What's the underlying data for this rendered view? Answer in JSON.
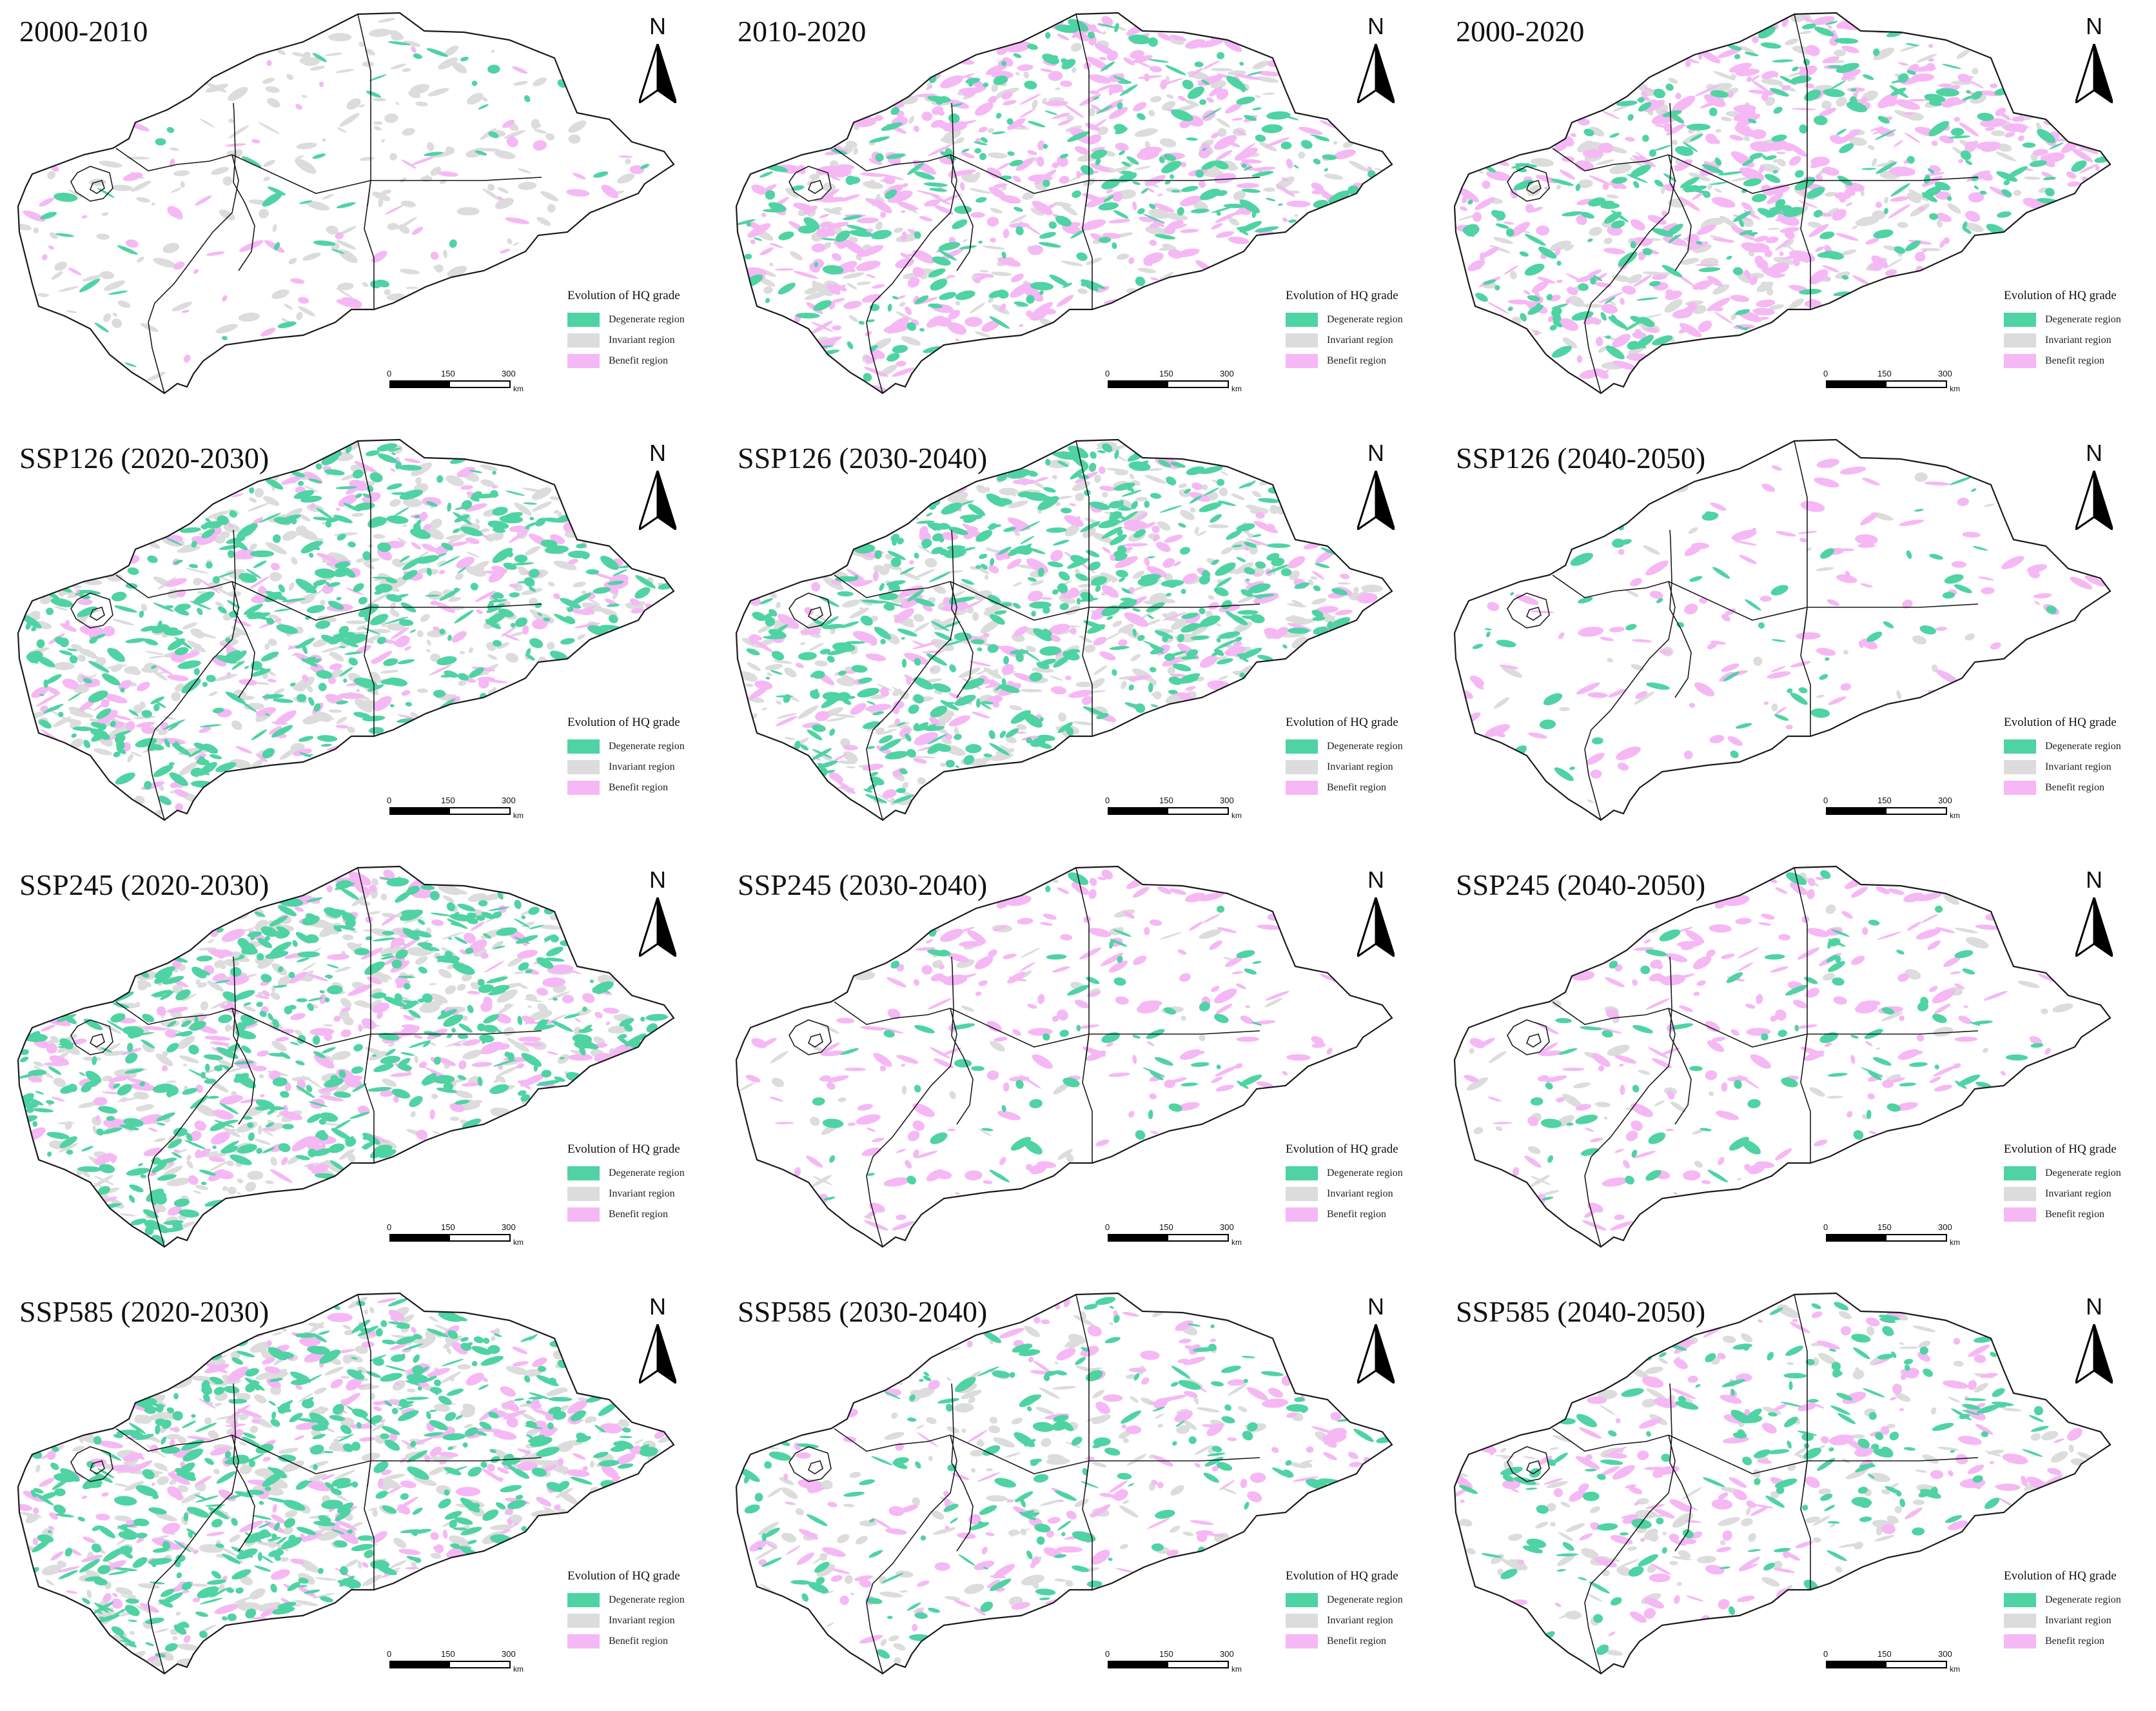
{
  "figure": {
    "colors": {
      "degenerate": "#4fd3a3",
      "invariant": "#dcdcdc",
      "benefit": "#f5b8f5",
      "boundary": "#1a1a1a"
    },
    "legend": {
      "title": "Evolution of HQ grade",
      "items": [
        {
          "label": "Degenerate region",
          "color": "#4fd3a3"
        },
        {
          "label": "Invariant region",
          "color": "#dcdcdc"
        },
        {
          "label": "Benefit region",
          "color": "#f5b8f5"
        }
      ]
    },
    "north_label": "N",
    "north_icon": "north-arrow-icon",
    "scale": {
      "ticks": [
        "0",
        "150",
        "300"
      ],
      "unit": "km"
    },
    "panels": [
      {
        "title": "2000-2010",
        "degenerate_level": 0.08,
        "benefit_level": 0.1,
        "invariant_level": 0.35
      },
      {
        "title": "2010-2020",
        "degenerate_level": 0.45,
        "benefit_level": 0.75,
        "invariant_level": 0.4
      },
      {
        "title": "2000-2020",
        "degenerate_level": 0.45,
        "benefit_level": 0.75,
        "invariant_level": 0.4
      },
      {
        "title": "SSP126 (2020-2030)",
        "degenerate_level": 0.8,
        "benefit_level": 0.4,
        "invariant_level": 0.7
      },
      {
        "title": "SSP126 (2030-2040)",
        "degenerate_level": 0.8,
        "benefit_level": 0.4,
        "invariant_level": 0.7
      },
      {
        "title": "SSP126 (2040-2050)",
        "degenerate_level": 0.1,
        "benefit_level": 0.2,
        "invariant_level": 0.05
      },
      {
        "title": "SSP245 (2020-2030)",
        "degenerate_level": 0.85,
        "benefit_level": 0.45,
        "invariant_level": 0.7
      },
      {
        "title": "SSP245 (2030-2040)",
        "degenerate_level": 0.12,
        "benefit_level": 0.35,
        "invariant_level": 0.08
      },
      {
        "title": "SSP245 (2040-2050)",
        "degenerate_level": 0.15,
        "benefit_level": 0.35,
        "invariant_level": 0.1
      },
      {
        "title": "SSP585 (2020-2030)",
        "degenerate_level": 0.85,
        "benefit_level": 0.45,
        "invariant_level": 0.7
      },
      {
        "title": "SSP585 (2030-2040)",
        "degenerate_level": 0.3,
        "benefit_level": 0.3,
        "invariant_level": 0.3
      },
      {
        "title": "SSP585 (2040-2050)",
        "degenerate_level": 0.3,
        "benefit_level": 0.3,
        "invariant_level": 0.3
      }
    ]
  }
}
